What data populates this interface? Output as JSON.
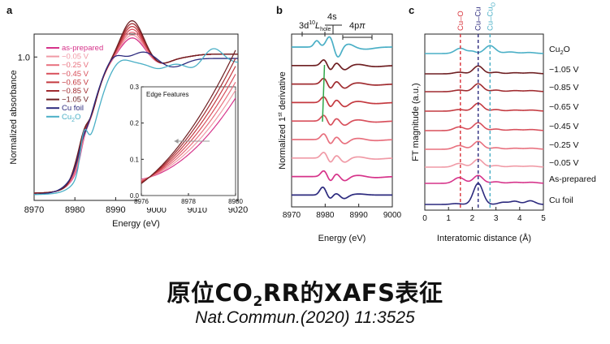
{
  "chart_data": [
    {
      "type": "line",
      "panel_label": "a",
      "xlabel": "Energy (eV)",
      "ylabel": "Normalized absorbance",
      "xlim": [
        8970,
        9020
      ],
      "ylim": [
        0.0,
        1.16
      ],
      "x_ticks": [
        "8970",
        "8980",
        "8990",
        "9000",
        "9010",
        "9020"
      ],
      "x_tick_values": [
        8970,
        8980,
        8990,
        9000,
        9010,
        9020
      ],
      "y_ticks": [
        "1.0"
      ],
      "y_tick_values": [
        1.0
      ],
      "legend_position": "top-left",
      "series": [
        {
          "name": "as-prepared",
          "color": "#d6338a",
          "kind": "cu"
        },
        {
          "name": "−0.05 V",
          "color": "#f09aa6",
          "kind": "cu"
        },
        {
          "name": "−0.25 V",
          "color": "#e8707e",
          "kind": "cu"
        },
        {
          "name": "−0.45 V",
          "color": "#d8505c",
          "kind": "cu"
        },
        {
          "name": "−0.65 V",
          "color": "#c43a40",
          "kind": "cu"
        },
        {
          "name": "−0.85 V",
          "color": "#a02c30",
          "kind": "cu"
        },
        {
          "name": "−1.05 V",
          "color": "#6e1f22",
          "kind": "cu"
        },
        {
          "name": "Cu foil",
          "color": "#2c2a7e",
          "kind": "foil",
          "sub": ""
        },
        {
          "name": "Cu",
          "color": "#4aafc6",
          "kind": "oxide",
          "sub": "2",
          "tail": "O"
        }
      ],
      "inset": {
        "title": "Edge Features",
        "xlim": [
          8976,
          8980
        ],
        "ylim": [
          0.0,
          0.3
        ],
        "x_ticks": [
          "8976",
          "8978",
          "8980"
        ],
        "x_tick_values": [
          8976,
          8978,
          8980
        ],
        "y_ticks": [
          "0.0",
          "0.1",
          "0.2",
          "0.3"
        ],
        "y_tick_values": [
          0.0,
          0.1,
          0.2,
          0.3
        ]
      }
    },
    {
      "type": "line",
      "panel_label": "b",
      "xlabel": "Energy (eV)",
      "ylabel_main": "Normalized 1",
      "ylabel_sup": "st",
      "ylabel_tail": " derivative",
      "xlim": [
        8970,
        9000
      ],
      "x_ticks": [
        "8970",
        "8980",
        "8990",
        "9000"
      ],
      "x_tick_values": [
        8970,
        8980,
        8990,
        9000
      ],
      "annotations": {
        "a1_main": "3d",
        "a1_sup": "10",
        "a1_l": "L",
        "a1_sub": "hole",
        "a2": "4s",
        "a3_main": "4p",
        "a3_pi": "π"
      }
    },
    {
      "type": "line",
      "panel_label": "c",
      "xlabel": "Interatomic distance (Å)",
      "ylabel": "FT magnitude (a.u.)",
      "xlim": [
        0,
        5
      ],
      "x_ticks": [
        "0",
        "1",
        "2",
        "3",
        "4",
        "5"
      ],
      "x_tick_values": [
        0,
        1,
        2,
        3,
        4,
        5
      ],
      "series_labels": [
        {
          "text": "Cu",
          "sub": "2",
          "tail": "O"
        },
        {
          "text": "−1.05 V"
        },
        {
          "text": "−0.85 V"
        },
        {
          "text": "−0.65 V"
        },
        {
          "text": "−0.45 V"
        },
        {
          "text": "−0.25 V"
        },
        {
          "text": "−0.05 V"
        },
        {
          "text": "As-prepared"
        },
        {
          "text": "Cu foil"
        }
      ],
      "reference_lines": [
        {
          "label": "Cu–O",
          "x": 1.5,
          "color": "#d8323a"
        },
        {
          "label": "Cu–Cu",
          "x": 2.25,
          "color": "#2c2a7e"
        },
        {
          "label": "Cu–Cu",
          "label_sub": "O",
          "x": 2.75,
          "color": "#4aafc6"
        }
      ]
    }
  ],
  "caption": {
    "title_pre": "原位CO",
    "title_sub": "2",
    "title_post": "RR的XAFS表征",
    "source": "Nat.Commun.(2020) 11:3525"
  }
}
